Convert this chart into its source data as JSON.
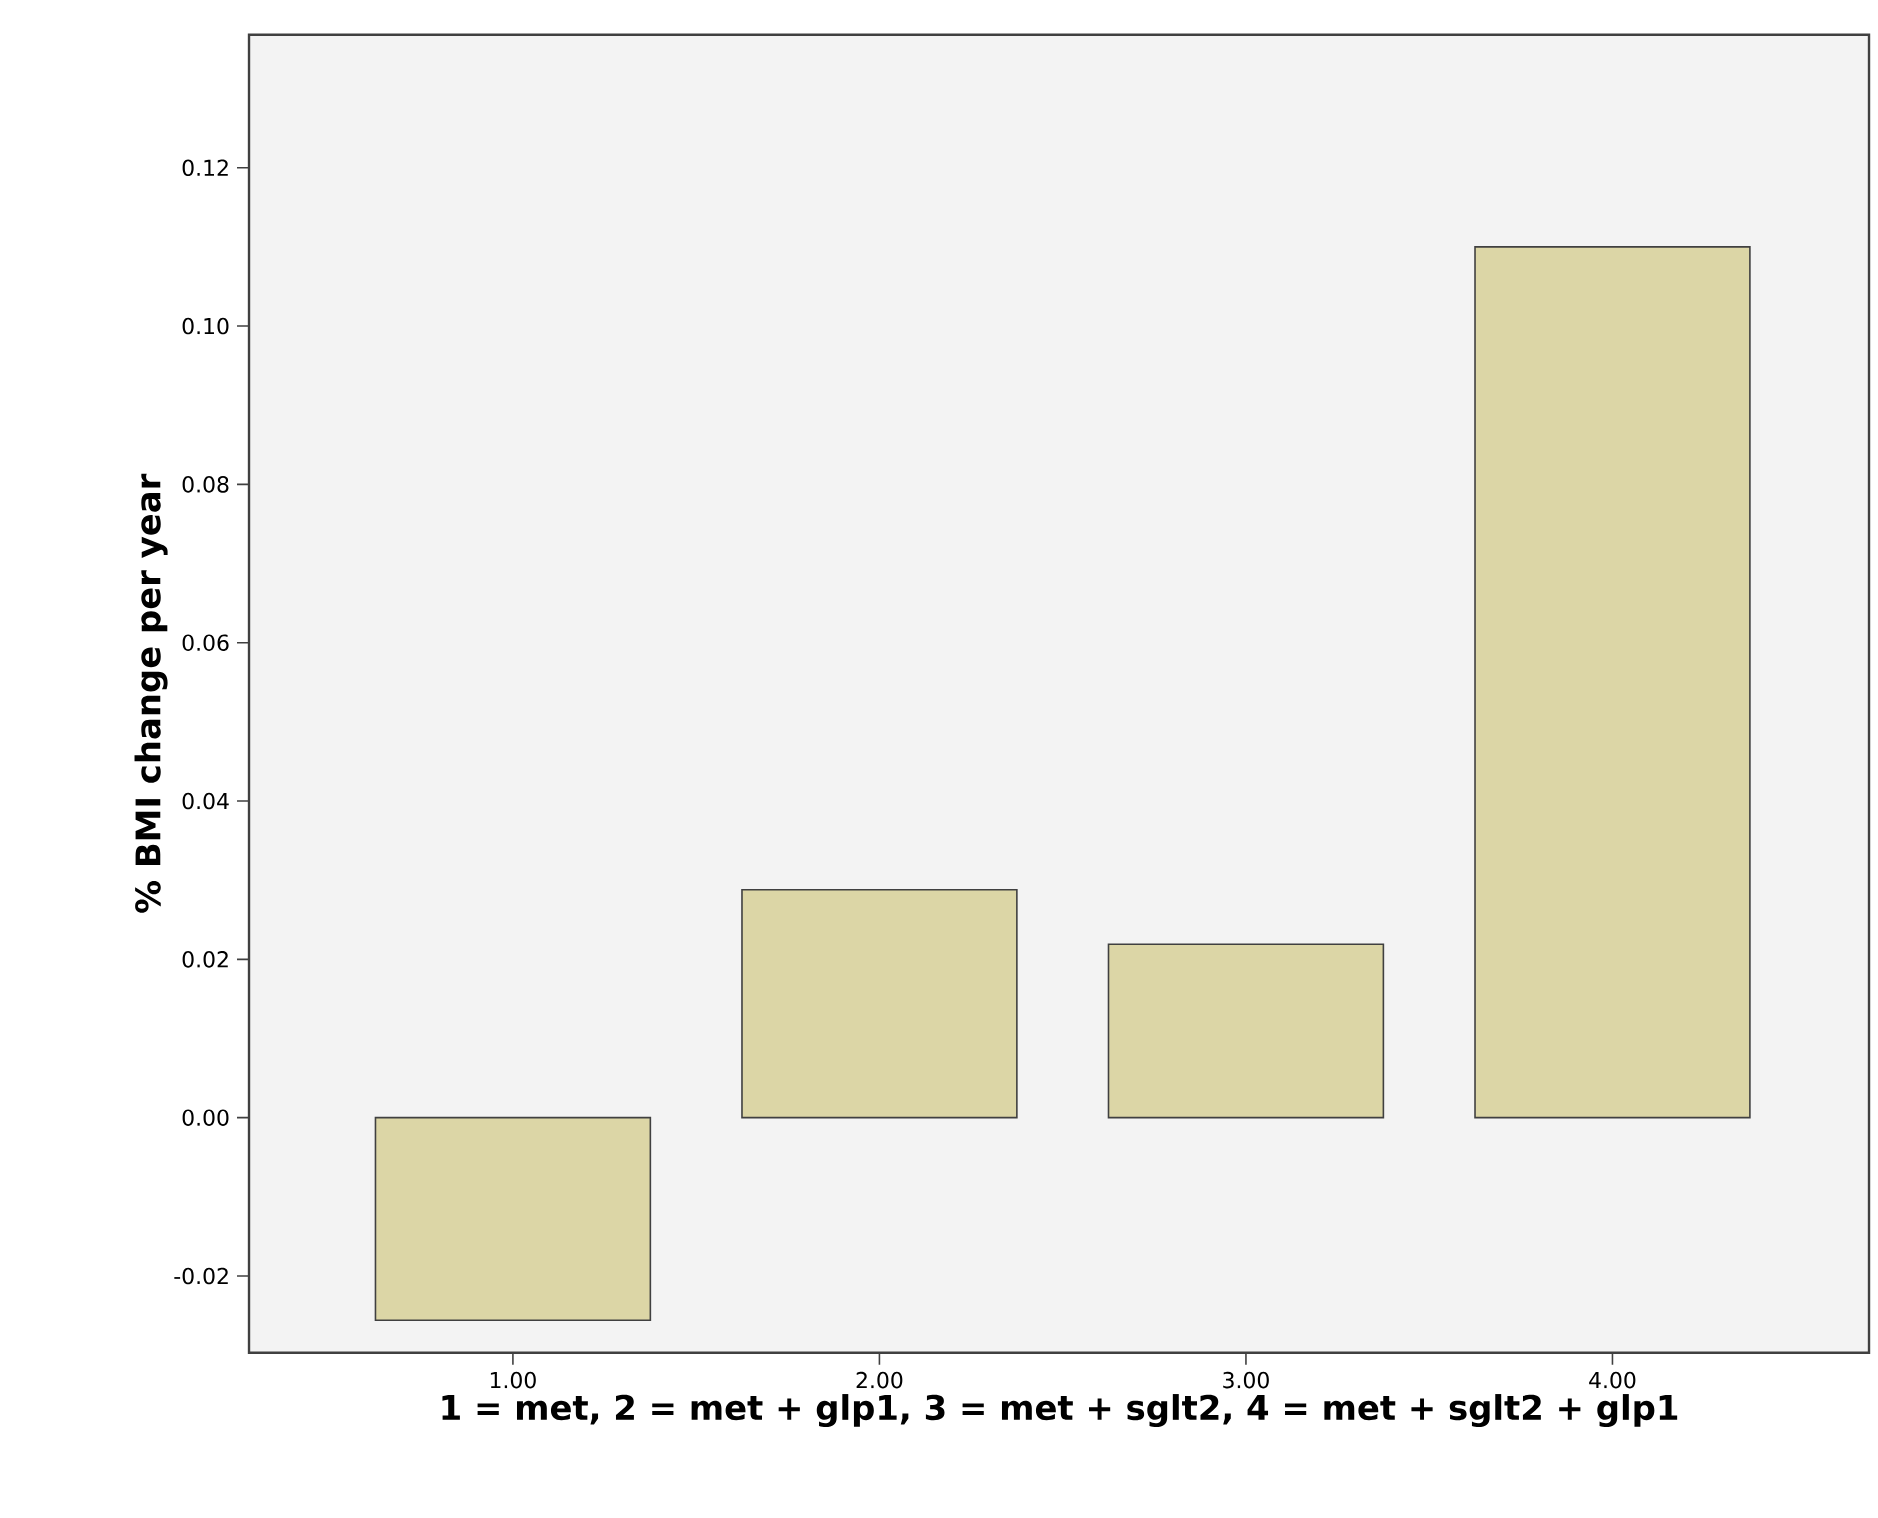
{
  "chart_data": {
    "type": "bar",
    "xlabel": "1 = met, 2 = met + glp1, 3 = met + sglt2, 4 = met + sglt2 + glp1",
    "ylabel": "% BMI change per year",
    "categories": [
      "1.00",
      "2.00",
      "3.00",
      "4.00"
    ],
    "values": [
      -0.0256,
      0.0288,
      0.0219,
      0.11
    ],
    "color": "#dcd6a6",
    "ylim": [
      -0.0297,
      0.1368
    ],
    "yticks": [
      {
        "value": -0.02,
        "label": "-0.02"
      },
      {
        "value": 0.0,
        "label": "0.00"
      },
      {
        "value": 0.02,
        "label": "0.02"
      },
      {
        "value": 0.04,
        "label": "0.04"
      },
      {
        "value": 0.06,
        "label": "0.06"
      },
      {
        "value": 0.08,
        "label": "0.08"
      },
      {
        "value": 0.1,
        "label": "0.10"
      },
      {
        "value": 0.12,
        "label": "0.12"
      }
    ],
    "grid": false
  }
}
